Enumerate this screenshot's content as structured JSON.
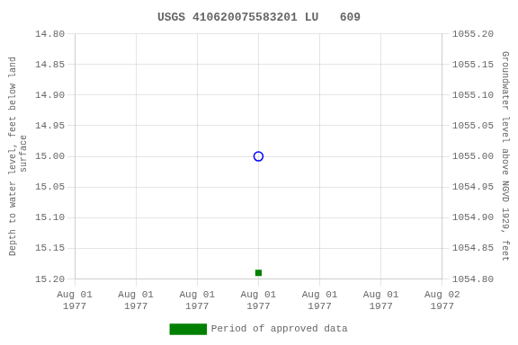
{
  "chart_data": {
    "type": "scatter",
    "title": "USGS 410620075583201 LU   609",
    "ylabel": "Depth to water level, feet below land\n surface",
    "y2label": "Groundwater level above NGVD 1929, feet",
    "x": [
      12
    ],
    "series": [
      {
        "color": "blue",
        "marker": "open_circle",
        "values": [
          15.0
        ]
      },
      {
        "name": "Period of approved data",
        "color": "#008000",
        "marker": "square",
        "values": [
          15.19
        ]
      }
    ],
    "xlim": [
      0,
      24
    ],
    "xticks": [
      {
        "value": 0,
        "label": "Aug 01\n1977"
      },
      {
        "value": 4,
        "label": "Aug 01\n1977"
      },
      {
        "value": 8,
        "label": "Aug 01\n1977"
      },
      {
        "value": 12,
        "label": "Aug 01\n1977"
      },
      {
        "value": 16,
        "label": "Aug 01\n1977"
      },
      {
        "value": 20,
        "label": "Aug 01\n1977"
      },
      {
        "value": 24,
        "label": "Aug 02\n1977"
      }
    ],
    "ylim": [
      15.2,
      14.8
    ],
    "yticks": [
      {
        "value": 14.8,
        "label": "14.80"
      },
      {
        "value": 14.85,
        "label": "14.85"
      },
      {
        "value": 14.9,
        "label": "14.90"
      },
      {
        "value": 14.95,
        "label": "14.95"
      },
      {
        "value": 15.0,
        "label": "15.00"
      },
      {
        "value": 15.05,
        "label": "15.05"
      },
      {
        "value": 15.1,
        "label": "15.10"
      },
      {
        "value": 15.15,
        "label": "15.15"
      },
      {
        "value": 15.2,
        "label": "15.20"
      }
    ],
    "y2lim": [
      1054.8,
      1055.2
    ],
    "y2ticks": [
      {
        "value": 1054.8,
        "label": "1054.80"
      },
      {
        "value": 1054.85,
        "label": "1054.85"
      },
      {
        "value": 1054.9,
        "label": "1054.90"
      },
      {
        "value": 1054.95,
        "label": "1054.95"
      },
      {
        "value": 1055.0,
        "label": "1055.00"
      },
      {
        "value": 1055.05,
        "label": "1055.05"
      },
      {
        "value": 1055.1,
        "label": "1055.10"
      },
      {
        "value": 1055.15,
        "label": "1055.15"
      },
      {
        "value": 1055.2,
        "label": "1055.20"
      }
    ],
    "grid": true,
    "legend": "bottom"
  }
}
